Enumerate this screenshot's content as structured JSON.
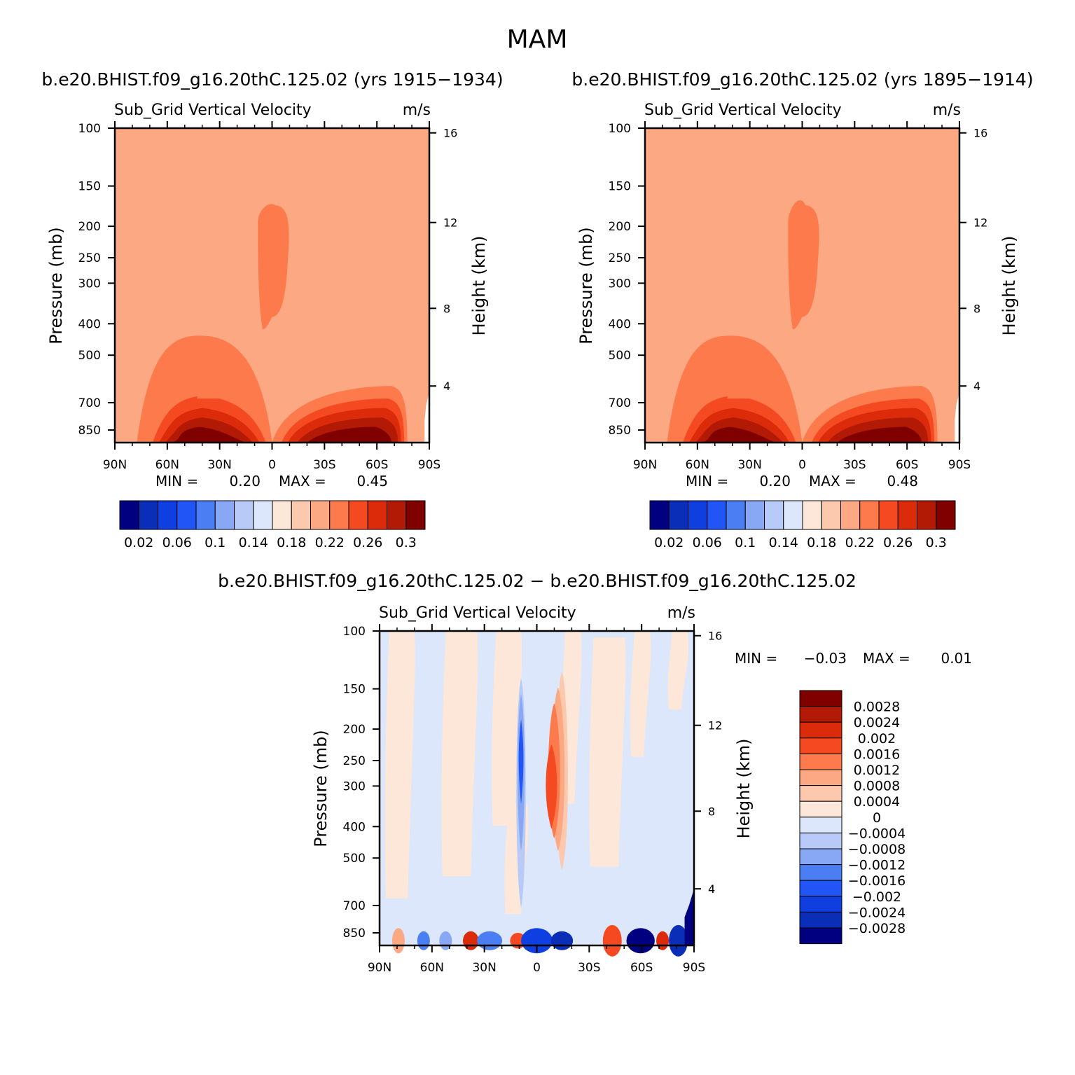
{
  "figure_title": "MAM",
  "colors": {
    "bg_field": "#FCA883",
    "left_palette": [
      "#000080",
      "#0A2EB8",
      "#0F3FE0",
      "#2155F5",
      "#4A7EF2",
      "#88A8F5",
      "#B8CBF8",
      "#DCE7FB",
      "#FCE7D9",
      "#FCC8AE",
      "#FCA883",
      "#FC7A4C",
      "#F54A21",
      "#DC2B0B",
      "#B31A06",
      "#800000"
    ],
    "diff_palette": [
      "#000080",
      "#0A2EB8",
      "#0F3FE0",
      "#2155F5",
      "#4A7EF2",
      "#88A8F5",
      "#B8CBF8",
      "#DCE7FB",
      "#FCE7D9",
      "#FCC8AE",
      "#FCA883",
      "#FC7A4C",
      "#F54A21",
      "#DC2B0B",
      "#B31A06",
      "#800000"
    ]
  },
  "chart_data": [
    {
      "type": "contour",
      "panel": "top-left",
      "title": "b.e20.BHIST.f09_g16.20thC.125.02 (yrs 1915−1934)",
      "variable": "Sub_Grid Vertical Velocity",
      "units": "m/s",
      "ylabel": "Pressure (mb)",
      "ylabel_right": "Height (km)",
      "x_ticks": [
        "90N",
        "60N",
        "30N",
        "0",
        "30S",
        "60S",
        "90S"
      ],
      "y_ticks": [
        "100",
        "150",
        "200",
        "250",
        "300",
        "400",
        "500",
        "700",
        "850"
      ],
      "height_ticks": [
        "16",
        "12",
        "8",
        "4"
      ],
      "min_label": "MIN =",
      "min_value": "0.20",
      "max_label": "MAX =",
      "max_value": "0.45",
      "colorbar_labels": [
        "0.02",
        "0.06",
        "0.1",
        "0.14",
        "0.18",
        "0.22",
        "0.26",
        "0.3"
      ]
    },
    {
      "type": "contour",
      "panel": "top-right",
      "title": "b.e20.BHIST.f09_g16.20thC.125.02 (yrs 1895−1914)",
      "variable": "Sub_Grid Vertical Velocity",
      "units": "m/s",
      "ylabel": "Pressure (mb)",
      "ylabel_right": "Height (km)",
      "x_ticks": [
        "90N",
        "60N",
        "30N",
        "0",
        "30S",
        "60S",
        "90S"
      ],
      "y_ticks": [
        "100",
        "150",
        "200",
        "250",
        "300",
        "400",
        "500",
        "700",
        "850"
      ],
      "height_ticks": [
        "16",
        "12",
        "8",
        "4"
      ],
      "min_label": "MIN =",
      "min_value": "0.20",
      "max_label": "MAX =",
      "max_value": "0.48",
      "colorbar_labels": [
        "0.02",
        "0.06",
        "0.1",
        "0.14",
        "0.18",
        "0.22",
        "0.26",
        "0.3"
      ]
    },
    {
      "type": "contour",
      "panel": "bottom",
      "title": "b.e20.BHIST.f09_g16.20thC.125.02 − b.e20.BHIST.f09_g16.20thC.125.02",
      "variable": "Sub_Grid Vertical Velocity",
      "units": "m/s",
      "ylabel": "Pressure (mb)",
      "ylabel_right": "Height (km)",
      "x_ticks": [
        "90N",
        "60N",
        "30N",
        "0",
        "30S",
        "60S",
        "90S"
      ],
      "y_ticks": [
        "100",
        "150",
        "200",
        "250",
        "300",
        "400",
        "500",
        "700",
        "850"
      ],
      "height_ticks": [
        "16",
        "12",
        "8",
        "4"
      ],
      "min_label": "MIN =",
      "min_value": "−0.03",
      "max_label": "MAX =",
      "max_value": "0.01",
      "colorbar_labels": [
        "0.0028",
        "0.0024",
        "0.002",
        "0.0016",
        "0.0012",
        "0.0008",
        "0.0004",
        "0",
        "−0.0004",
        "−0.0008",
        "−0.0012",
        "−0.0016",
        "−0.002",
        "−0.0024",
        "−0.0028"
      ]
    }
  ]
}
